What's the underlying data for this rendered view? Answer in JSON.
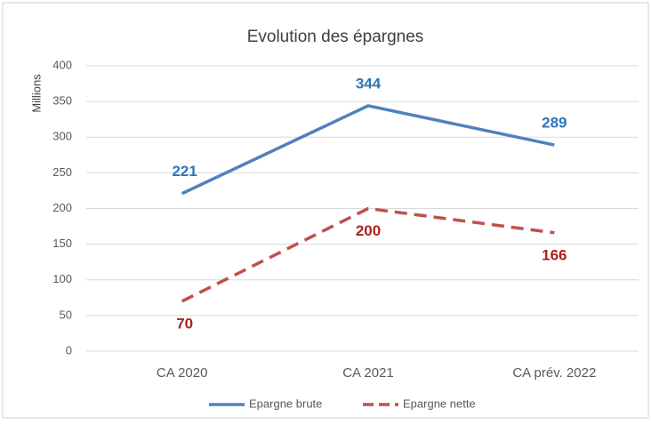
{
  "chart_data": {
    "type": "line",
    "title": "Evolution des épargnes",
    "y_label": "Millions",
    "categories": [
      "CA 2020",
      "CA 2021",
      "CA prév. 2022"
    ],
    "series": [
      {
        "name": "Epargne brute",
        "color": "#4f81bd",
        "label_color": "#2e75b6",
        "dash": false,
        "values": [
          221,
          344,
          289
        ]
      },
      {
        "name": "Epargne nette",
        "color": "#c0504d",
        "label_color": "#b02020",
        "dash": true,
        "values": [
          70,
          200,
          166
        ]
      }
    ],
    "ylim": [
      0,
      400
    ],
    "yticks": [
      0,
      50,
      100,
      150,
      200,
      250,
      300,
      350,
      400
    ],
    "grid": true,
    "legend": "bottom"
  }
}
